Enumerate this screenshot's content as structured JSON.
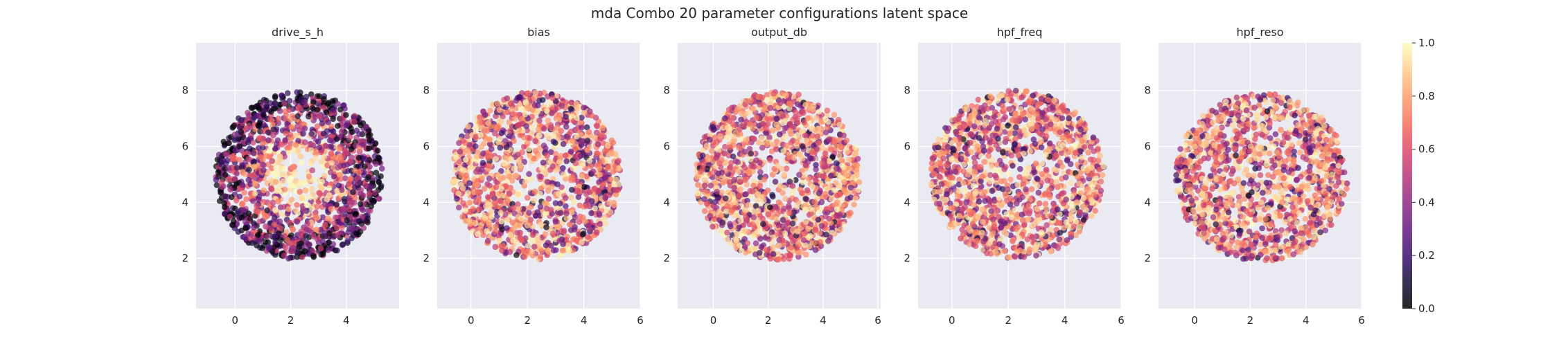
{
  "chart_data": {
    "type": "scatter",
    "title": "mda Combo 20 parameter configurations latent space",
    "colormap": "magma",
    "marker_alpha": 0.7,
    "grid": true,
    "panel_background": "#eaeaf2",
    "grid_color": "#ffffff",
    "colorbar": {
      "range": [
        0.0,
        1.0
      ],
      "ticks": [
        "0.0",
        "0.2",
        "0.4",
        "0.6",
        "0.8",
        "1.0"
      ]
    },
    "panels": [
      {
        "title": "drive_s_h",
        "xlim": [
          -1.4,
          5.9
        ],
        "ylim": [
          0.2,
          9.7
        ],
        "xticks": [
          "0",
          "2",
          "4"
        ],
        "yticks": [
          "2",
          "4",
          "6",
          "8"
        ],
        "center": [
          2.3,
          4.95
        ],
        "radius": [
          3.0,
          3.0
        ],
        "pattern": "bright-center"
      },
      {
        "title": "bias",
        "xlim": [
          -1.2,
          6.0
        ],
        "ylim": [
          0.2,
          9.7
        ],
        "xticks": [
          "0",
          "2",
          "4",
          "6"
        ],
        "yticks": [
          "2",
          "4",
          "6",
          "8"
        ],
        "center": [
          2.3,
          4.95
        ],
        "radius": [
          3.0,
          3.0
        ],
        "pattern": "random"
      },
      {
        "title": "output_db",
        "xlim": [
          -1.3,
          6.1
        ],
        "ylim": [
          0.2,
          9.7
        ],
        "xticks": [
          "0",
          "2",
          "4",
          "6"
        ],
        "yticks": [
          "2",
          "4",
          "6",
          "8"
        ],
        "center": [
          2.35,
          4.95
        ],
        "radius": [
          3.0,
          3.0
        ],
        "pattern": "random"
      },
      {
        "title": "hpf_freq",
        "xlim": [
          -1.2,
          6.0
        ],
        "ylim": [
          0.2,
          9.7
        ],
        "xticks": [
          "0",
          "2",
          "4",
          "6"
        ],
        "yticks": [
          "2",
          "4",
          "6",
          "8"
        ],
        "center": [
          2.3,
          5.0
        ],
        "radius": [
          3.1,
          3.0
        ],
        "pattern": "random"
      },
      {
        "title": "hpf_reso",
        "xlim": [
          -1.3,
          6.0
        ],
        "ylim": [
          0.2,
          9.7
        ],
        "xticks": [
          "0",
          "2",
          "4",
          "6"
        ],
        "yticks": [
          "2",
          "4",
          "6",
          "8"
        ],
        "center": [
          2.4,
          4.9
        ],
        "radius": [
          3.1,
          3.0
        ],
        "pattern": "random"
      }
    ]
  }
}
